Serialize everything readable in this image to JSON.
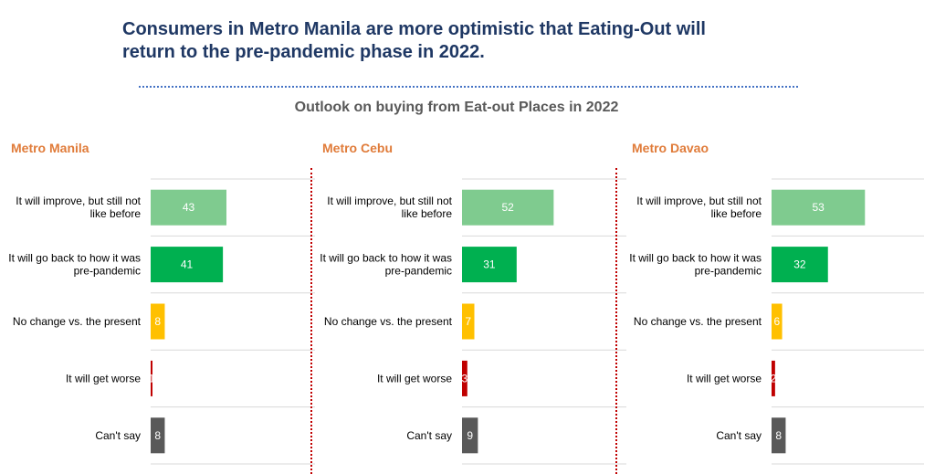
{
  "headline_line1": "Consumers in Metro Manila are more optimistic that Eating-Out will",
  "headline_line2": "return to the pre-pandemic phase in 2022.",
  "chart_data": {
    "type": "bar",
    "orientation": "horizontal",
    "title": "Outlook on buying from Eat-out Places in 2022",
    "xlim": [
      0,
      100
    ],
    "grid": "horizontal separators",
    "categories": [
      [
        "It will improve, but still not",
        "like before"
      ],
      [
        "It will go back to how it was",
        "pre-pandemic"
      ],
      [
        "No change vs. the present"
      ],
      [
        "It will get worse"
      ],
      [
        "Can't say"
      ]
    ],
    "category_colors": [
      "#7fcb8f",
      "#00b050",
      "#ffc000",
      "#c00000",
      "#595959"
    ],
    "panels": [
      {
        "title": "Metro Manila",
        "values": [
          43,
          41,
          8,
          1,
          8
        ],
        "value_labels": [
          "43",
          "41",
          "8",
          "1",
          "8"
        ]
      },
      {
        "title": "Metro Cebu",
        "values": [
          52,
          31,
          7,
          3,
          9
        ],
        "value_labels": [
          "52",
          "31",
          "7",
          "3",
          "9"
        ]
      },
      {
        "title": "Metro Davao",
        "values": [
          53,
          32,
          6,
          2,
          8
        ],
        "value_labels": [
          "53",
          "32",
          "6",
          "2",
          "8"
        ]
      }
    ]
  }
}
